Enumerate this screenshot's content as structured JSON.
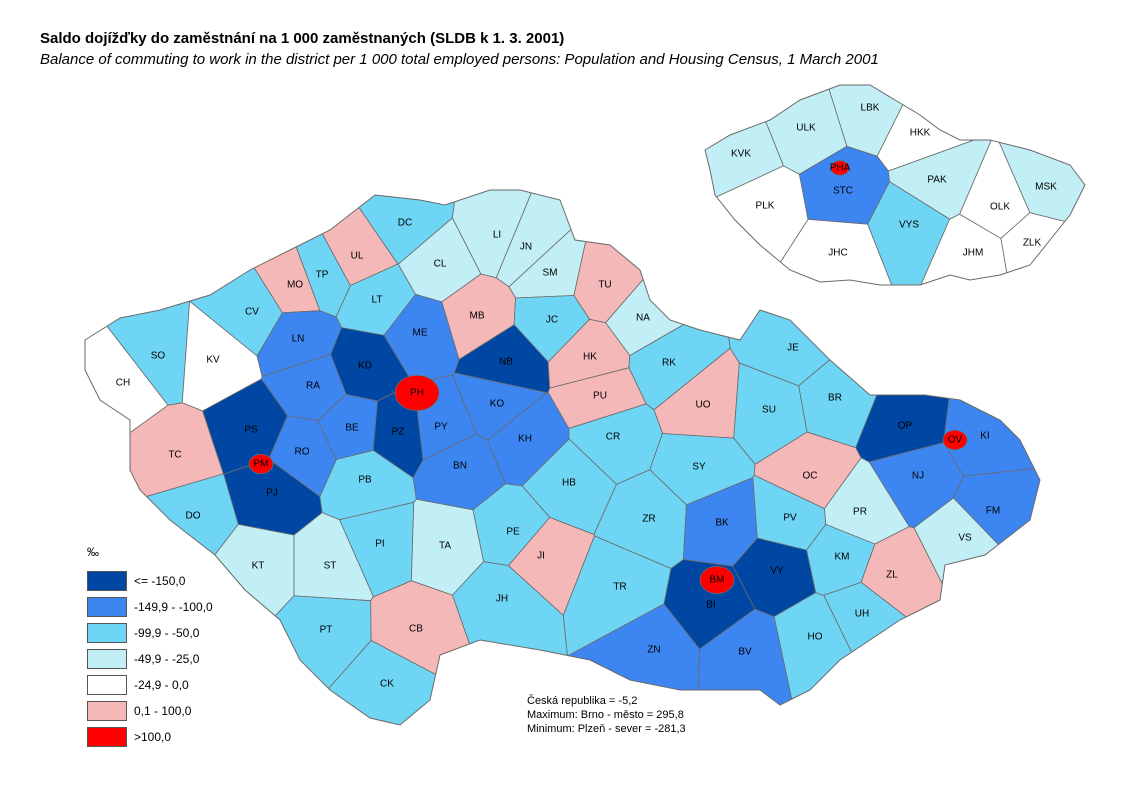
{
  "title": "Saldo dojížďky do zaměstnání na 1 000 zaměstnaných (SLDB k 1. 3. 2001)",
  "subtitle": "Balance of commuting to work in the district per 1 000 total employed persons: Population and Housing Census, 1 March 2001",
  "legend": {
    "unit": "‰",
    "items": [
      {
        "label": "<= -150,0",
        "color": "#0047a3"
      },
      {
        "label": "-149,9 - -100,0",
        "color": "#3d86f2"
      },
      {
        "label": "-99,9 - -50,0",
        "color": "#6fd5f5"
      },
      {
        "label": "-49,9 - -25,0",
        "color": "#c2eff6"
      },
      {
        "label": "-24,9 - 0,0",
        "color": "#ffffff"
      },
      {
        "label": "0,1 - 100,0",
        "color": "#f5b8b8"
      },
      {
        "label": ">100,0",
        "color": "#ff0000"
      }
    ]
  },
  "stats": {
    "country": "Česká republika = -5,2",
    "maximum": "Maximum: Brno - město  = 295,8",
    "minimum": "Minimum: Plzeň - sever  = -281,3"
  },
  "districts": [
    {
      "code": "CH",
      "class": 4
    },
    {
      "code": "SO",
      "class": 2
    },
    {
      "code": "KV",
      "class": 4
    },
    {
      "code": "CV",
      "class": 2
    },
    {
      "code": "MO",
      "class": 5
    },
    {
      "code": "TP",
      "class": 2
    },
    {
      "code": "UL",
      "class": 5
    },
    {
      "code": "DC",
      "class": 2
    },
    {
      "code": "LT",
      "class": 2
    },
    {
      "code": "CL",
      "class": 3
    },
    {
      "code": "LI",
      "class": 3
    },
    {
      "code": "JN",
      "class": 3
    },
    {
      "code": "SM",
      "class": 3
    },
    {
      "code": "TU",
      "class": 5
    },
    {
      "code": "MB",
      "class": 5
    },
    {
      "code": "JC",
      "class": 2
    },
    {
      "code": "NA",
      "class": 3
    },
    {
      "code": "LN",
      "class": 1
    },
    {
      "code": "ME",
      "class": 1
    },
    {
      "code": "KD",
      "class": 0
    },
    {
      "code": "NB",
      "class": 0
    },
    {
      "code": "HK",
      "class": 5
    },
    {
      "code": "RK",
      "class": 2
    },
    {
      "code": "RA",
      "class": 1
    },
    {
      "code": "PH",
      "class": 6
    },
    {
      "code": "KO",
      "class": 1
    },
    {
      "code": "PU",
      "class": 5
    },
    {
      "code": "UO",
      "class": 5
    },
    {
      "code": "SU",
      "class": 2
    },
    {
      "code": "JE",
      "class": 2
    },
    {
      "code": "BR",
      "class": 2
    },
    {
      "code": "OP",
      "class": 0
    },
    {
      "code": "OV",
      "class": 6
    },
    {
      "code": "KI",
      "class": 1
    },
    {
      "code": "PS",
      "class": 0
    },
    {
      "code": "RO",
      "class": 1
    },
    {
      "code": "BE",
      "class": 1
    },
    {
      "code": "PZ",
      "class": 0
    },
    {
      "code": "PY",
      "class": 1
    },
    {
      "code": "KH",
      "class": 1
    },
    {
      "code": "CR",
      "class": 2
    },
    {
      "code": "TC",
      "class": 5
    },
    {
      "code": "PM",
      "class": 6
    },
    {
      "code": "PJ",
      "class": 0
    },
    {
      "code": "PB",
      "class": 2
    },
    {
      "code": "BN",
      "class": 1
    },
    {
      "code": "HB",
      "class": 2
    },
    {
      "code": "SY",
      "class": 2
    },
    {
      "code": "OC",
      "class": 5
    },
    {
      "code": "NJ",
      "class": 1
    },
    {
      "code": "FM",
      "class": 1
    },
    {
      "code": "DO",
      "class": 2
    },
    {
      "code": "PI",
      "class": 2
    },
    {
      "code": "TA",
      "class": 3
    },
    {
      "code": "PE",
      "class": 2
    },
    {
      "code": "ZR",
      "class": 2
    },
    {
      "code": "BK",
      "class": 1
    },
    {
      "code": "PV",
      "class": 2
    },
    {
      "code": "PR",
      "class": 3
    },
    {
      "code": "VS",
      "class": 3
    },
    {
      "code": "KT",
      "class": 3
    },
    {
      "code": "ST",
      "class": 3
    },
    {
      "code": "JI",
      "class": 5
    },
    {
      "code": "KM",
      "class": 2
    },
    {
      "code": "ZL",
      "class": 5
    },
    {
      "code": "BM",
      "class": 6
    },
    {
      "code": "VY",
      "class": 0
    },
    {
      "code": "BI",
      "class": 0
    },
    {
      "code": "UH",
      "class": 2
    },
    {
      "code": "TR",
      "class": 2
    },
    {
      "code": "JH",
      "class": 2
    },
    {
      "code": "PT",
      "class": 2
    },
    {
      "code": "CB",
      "class": 5
    },
    {
      "code": "HO",
      "class": 2
    },
    {
      "code": "ZN",
      "class": 1
    },
    {
      "code": "BV",
      "class": 1
    },
    {
      "code": "CK",
      "class": 2
    }
  ],
  "regions": [
    {
      "code": "LBK",
      "class": 3
    },
    {
      "code": "ULK",
      "class": 3
    },
    {
      "code": "HKK",
      "class": 4
    },
    {
      "code": "KVK",
      "class": 3
    },
    {
      "code": "PHA",
      "class": 6
    },
    {
      "code": "STC",
      "class": 1
    },
    {
      "code": "PAK",
      "class": 3
    },
    {
      "code": "MSK",
      "class": 3
    },
    {
      "code": "PLK",
      "class": 4
    },
    {
      "code": "VYS",
      "class": 2
    },
    {
      "code": "OLK",
      "class": 4
    },
    {
      "code": "ZLK",
      "class": 4
    },
    {
      "code": "JHC",
      "class": 4
    },
    {
      "code": "JHM",
      "class": 4
    }
  ]
}
